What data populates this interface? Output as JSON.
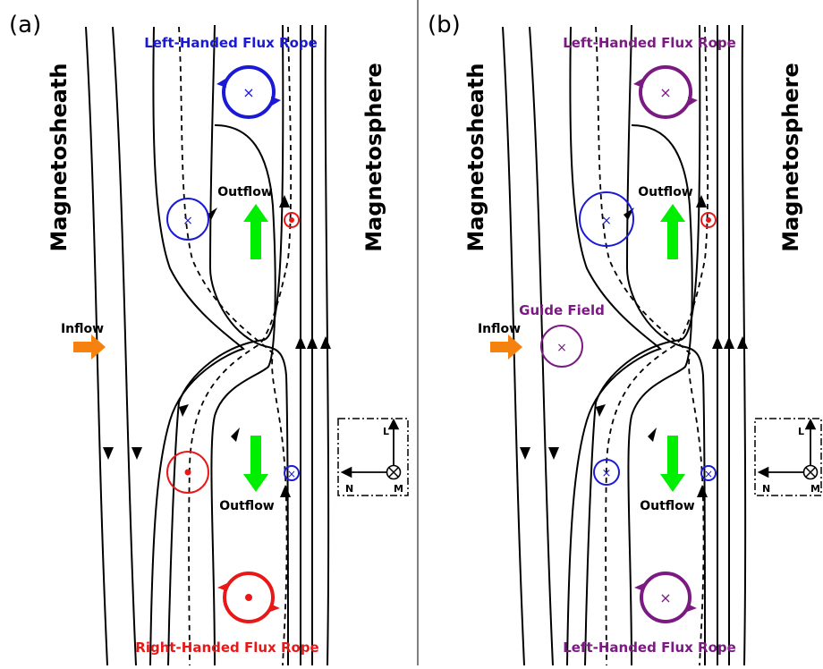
{
  "colors": {
    "left_rope_a": "#1a1ad6",
    "right_rope": "#e81818",
    "left_rope_b": "#7a1a82",
    "guide": "#7a1a82",
    "outflow_arrow": "#00ee00",
    "inflow_arrow": "#f5820f",
    "line": "#000000"
  },
  "panels": [
    {
      "label": "(a)",
      "sheath": "Magnetosheath",
      "sphere": "Magnetosphere",
      "top_rope": "Left-Handed Flux Rope",
      "bottom_rope": "Right-Handed Flux Rope",
      "outflow_top": "Outflow",
      "outflow_bottom": "Outflow",
      "inflow": "Inflow",
      "guide_field": "",
      "axes": {
        "l": "L",
        "n": "N",
        "m": "M"
      }
    },
    {
      "label": "(b)",
      "sheath": "Magnetosheath",
      "sphere": "Magnetosphere",
      "top_rope": "Left-Handed Flux Rope",
      "bottom_rope": "Left-Handed Flux Rope",
      "outflow_top": "Outflow",
      "outflow_bottom": "Outflow",
      "inflow": "Inflow",
      "guide_field": "Guide Field",
      "axes": {
        "l": "L",
        "n": "N",
        "m": "M"
      }
    }
  ]
}
